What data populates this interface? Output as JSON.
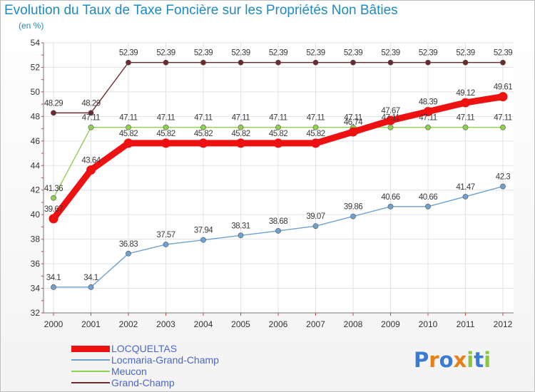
{
  "chart_data": {
    "type": "line",
    "title": "Evolution du Taux de Taxe Foncière sur les Propriétés Non Bâties",
    "ylabel": "(en %)",
    "xlabel": "",
    "ylim": [
      32,
      54
    ],
    "yticks": [
      32,
      34,
      36,
      38,
      40,
      42,
      44,
      46,
      48,
      50,
      52,
      54
    ],
    "categories": [
      "2000",
      "2001",
      "2002",
      "2003",
      "2004",
      "2005",
      "2006",
      "2007",
      "2008",
      "2009",
      "2010",
      "2011",
      "2012"
    ],
    "series": [
      {
        "name": "Grand-Champ",
        "color": "#6b2a2d",
        "line_width": "thin",
        "labels_above": true,
        "values": [
          48.29,
          48.29,
          52.39,
          52.39,
          52.39,
          52.39,
          52.39,
          52.39,
          52.39,
          52.39,
          52.39,
          52.39,
          52.39
        ],
        "labels": [
          "48.29",
          "48.29",
          "52.39",
          "52.39",
          "52.39",
          "52.39",
          "52.39",
          "52.39",
          "52.39",
          "52.39",
          "52.39",
          "52.39",
          "52.39"
        ]
      },
      {
        "name": "Meucon",
        "color": "#8ed14f",
        "line_width": "thin",
        "labels_above": true,
        "values": [
          41.36,
          47.11,
          47.11,
          47.11,
          47.11,
          47.11,
          47.11,
          47.11,
          47.11,
          47.11,
          47.11,
          47.11,
          47.11
        ],
        "labels": [
          "41.36",
          "47.11",
          "47.11",
          "47.11",
          "47.11",
          "47.11",
          "47.11",
          "47.11",
          "47.11",
          "47.11",
          "47.11",
          "47.11",
          "47.11"
        ]
      },
      {
        "name": "Locmaria-Grand-Champ",
        "color": "#6fa1cf",
        "line_width": "thin",
        "labels_above": true,
        "values": [
          34.1,
          34.1,
          36.83,
          37.57,
          37.94,
          38.31,
          38.68,
          39.07,
          39.86,
          40.66,
          40.66,
          41.47,
          42.3
        ],
        "labels": [
          "34.1",
          "34.1",
          "36.83",
          "37.57",
          "37.94",
          "38.31",
          "38.68",
          "39.07",
          "39.86",
          "40.66",
          "40.66",
          "41.47",
          "42.3"
        ]
      },
      {
        "name": "LOCQUELTAS",
        "color": "#ee1111",
        "line_width": "thick",
        "labels_above": true,
        "values": [
          39.67,
          43.64,
          45.82,
          45.82,
          45.82,
          45.82,
          45.82,
          45.82,
          46.74,
          47.67,
          48.39,
          49.12,
          49.61
        ],
        "labels": [
          "39.67",
          "43.64",
          "45.82",
          "45.82",
          "45.82",
          "45.82",
          "45.82",
          "45.82",
          "46.74",
          "47.67",
          "48.39",
          "49.12",
          "49.61"
        ]
      }
    ],
    "legend_order": [
      "LOCQUELTAS",
      "Locmaria-Grand-Champ",
      "Meucon",
      "Grand-Champ"
    ],
    "legend_position": "bottom-left"
  },
  "logo": {
    "text": "Proxiti",
    "letters": [
      "P",
      "r",
      "o",
      "x",
      "i",
      "t",
      "i"
    ],
    "colors": [
      "#3a7bd5",
      "#e8801a",
      "#3a7bd5",
      "#e8801a",
      "#8cc63f",
      "#3a7bd5",
      "#8cc63f"
    ]
  }
}
